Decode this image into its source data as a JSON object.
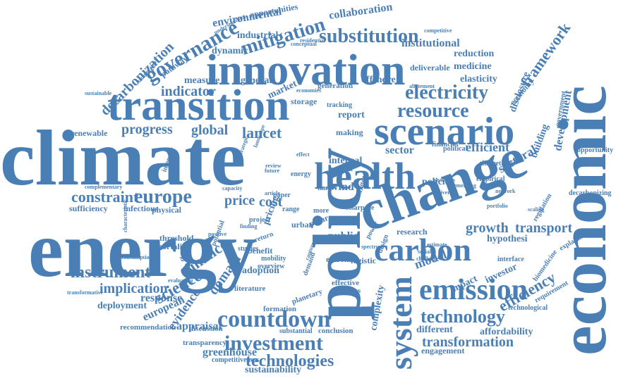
{
  "cloud": {
    "color": "#4a7fb5",
    "words": [
      "climate",
      "energy",
      "policy",
      "economic",
      "change",
      "innovation",
      "transition",
      "health",
      "scenario",
      "system",
      "carbon",
      "emission",
      "countdown",
      "investment",
      "electricity",
      "resource",
      "europe",
      "governance",
      "mitigation",
      "substitution",
      "technology",
      "technologies",
      "science",
      "instrument",
      "implication",
      "constraint",
      "price",
      "cost",
      "growth",
      "transport",
      "transformation",
      "efficiency",
      "framework",
      "decarbonization",
      "indicator",
      "progress",
      "global",
      "lancet",
      "environmental",
      "collaboration",
      "institutional",
      "industrial",
      "dynamic",
      "medicine",
      "elasticity",
      "reduction",
      "measure",
      "general",
      "market",
      "offshore",
      "report",
      "sectoral",
      "development",
      "building",
      "disclosure",
      "efficient",
      "sector",
      "wind",
      "internal",
      "policies",
      "public",
      "model",
      "finance",
      "evidence",
      "domain",
      "response",
      "deployment",
      "european",
      "appraisal",
      "greenhouse",
      "sustainability",
      "complexity",
      "different",
      "affordability",
      "engagement",
      "adoption",
      "pricing",
      "hypothesi",
      "infectious",
      "physical",
      "sufficiency",
      "renewable",
      "threshold",
      "mortality",
      "recommendation",
      "transparency",
      "competitiveness",
      "discussion",
      "formation",
      "conclusion",
      "substantial",
      "effective",
      "business",
      "planetary",
      "research",
      "logistic",
      "extreme",
      "benefit",
      "mobility",
      "overview",
      "literature",
      "studies",
      "storage",
      "generation",
      "making",
      "tracking",
      "opportunity",
      "decarbonizing",
      "regulation",
      "technological",
      "investor",
      "impact",
      "biomedicine",
      "requirement",
      "interface",
      "explaining",
      "pathway",
      "opportunities",
      "understanding",
      "residential",
      "conceptual",
      "competitive",
      "deliverable",
      "economy",
      "government",
      "theoretical",
      "political",
      "financial",
      "empirical",
      "urban",
      "range",
      "paper",
      "solar",
      "pace",
      "pillar",
      "more",
      "time",
      "article",
      "intensity",
      "capacity",
      "sustainable",
      "economies",
      "abatement",
      "potential",
      "positive",
      "future",
      "review",
      "effect",
      "current",
      "target",
      "power",
      "spectrum",
      "design",
      "challenge",
      "return",
      "demand",
      "capture",
      "social",
      "estimate",
      "project",
      "finding",
      "transformative",
      "evaluating",
      "decision",
      "consumption",
      "characteristic",
      "complementary",
      "temperature",
      "landscape",
      "strategic",
      "emerging",
      "network",
      "scaling",
      "portfolio",
      "diverse",
      "weakness",
      "energy"
    ]
  }
}
